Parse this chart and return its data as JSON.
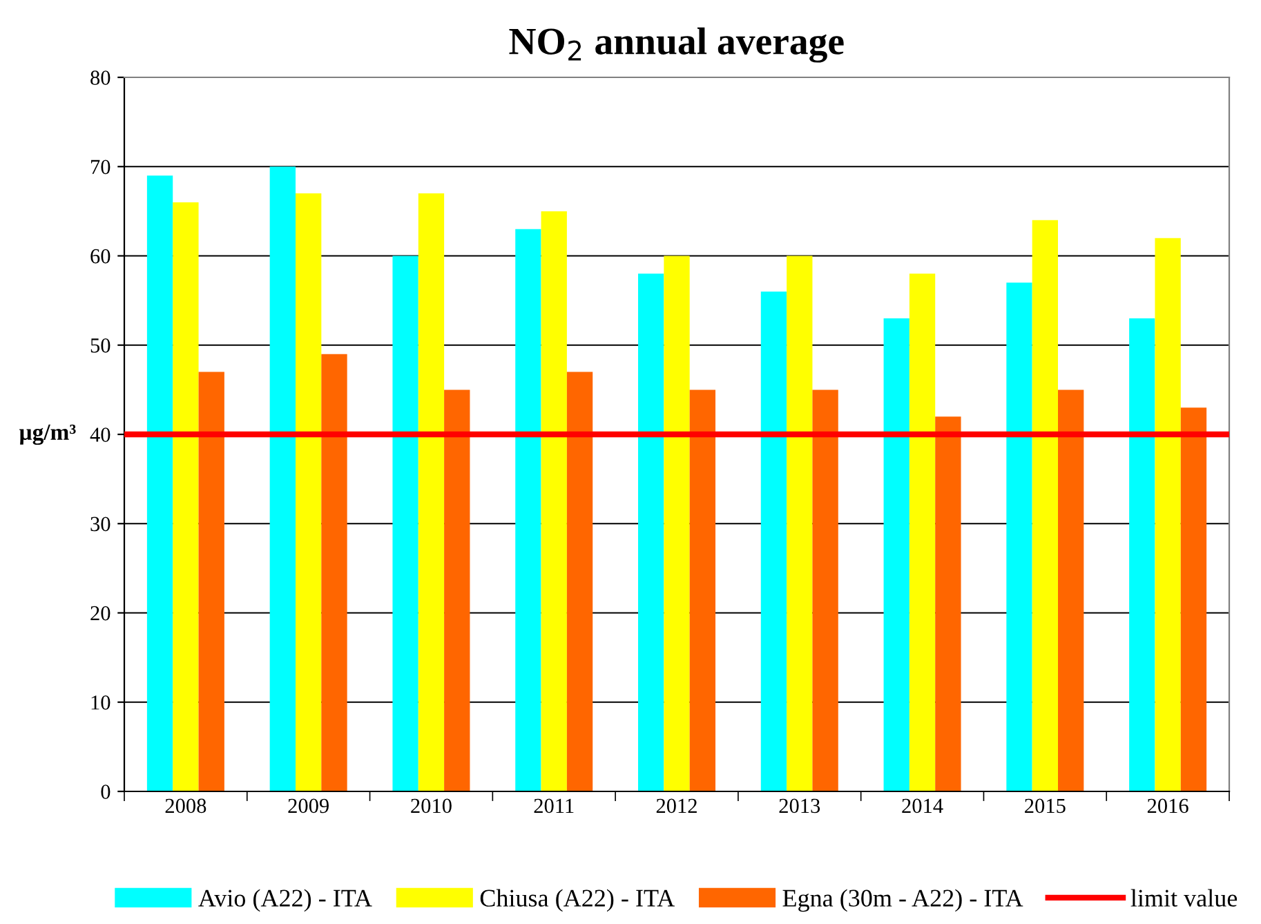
{
  "chart_data": {
    "type": "bar",
    "title": "NO$_{2}$ annual average",
    "ylabel": "µg/m³",
    "categories": [
      "2008",
      "2009",
      "2010",
      "2011",
      "2012",
      "2013",
      "2014",
      "2015",
      "2016"
    ],
    "series": [
      {
        "name": "Avio (A22) - ITA",
        "color": "#00ffff",
        "values": [
          69,
          70,
          60,
          63,
          58,
          56,
          53,
          57,
          53
        ]
      },
      {
        "name": "Chiusa (A22) - ITA",
        "color": "#ffff00",
        "values": [
          66,
          67,
          67,
          65,
          60,
          60,
          58,
          64,
          62
        ]
      },
      {
        "name": "Egna (30m - A22) - ITA",
        "color": "#ff6600",
        "values": [
          47,
          49,
          45,
          47,
          45,
          45,
          42,
          45,
          43
        ]
      }
    ],
    "ref_lines": [
      {
        "axis": "y",
        "value": 40,
        "label": "limit value",
        "color": "#ff0000",
        "line_style": "solid"
      }
    ],
    "ylim": [
      0,
      80
    ],
    "yticks": [
      0,
      10,
      20,
      30,
      40,
      50,
      60,
      70,
      80
    ],
    "grid": "y",
    "legend": "bottom"
  }
}
